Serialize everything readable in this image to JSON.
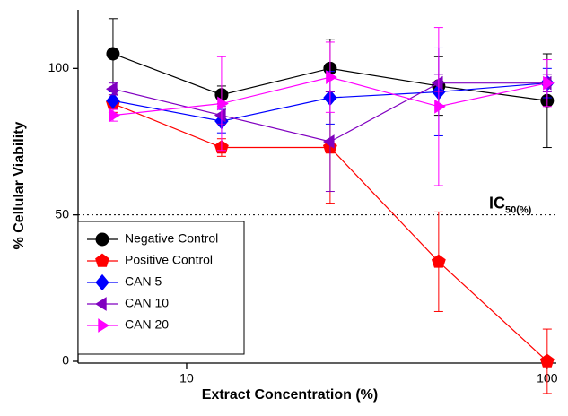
{
  "chart_data": {
    "type": "line",
    "x_label": "Extract Concentration (%)",
    "y_label": "% Cellular Viability",
    "x": [
      6.25,
      12.5,
      25,
      50,
      100
    ],
    "x_log": true,
    "xlim": [
      5,
      106
    ],
    "xticks": [
      10,
      100
    ],
    "ylim": [
      0,
      120
    ],
    "yticks": [
      0,
      50,
      100
    ],
    "reference_line": 50,
    "reference_label": "IC",
    "reference_label_sub": "50(%)",
    "legend": "lower-left",
    "series": [
      {
        "name": "Negative Control",
        "color": "#000000",
        "marker": "circle",
        "values": [
          105,
          91,
          100,
          94,
          89
        ],
        "errors": [
          12,
          3,
          10,
          10,
          16
        ]
      },
      {
        "name": "Positive Control",
        "color": "#ff0000",
        "marker": "pentagon",
        "values": [
          88,
          73,
          73,
          34,
          0
        ],
        "errors": [
          3,
          3,
          19,
          17,
          11
        ]
      },
      {
        "name": "CAN 5",
        "color": "#0000ff",
        "marker": "diamond",
        "values": [
          89,
          82,
          90,
          92,
          95
        ],
        "errors": [
          3,
          4,
          9,
          15,
          5
        ]
      },
      {
        "name": "CAN 10",
        "color": "#8000c0",
        "marker": "triangle-left",
        "values": [
          93,
          84,
          75,
          95,
          95
        ],
        "errors": [
          2,
          3,
          17,
          3,
          3
        ]
      },
      {
        "name": "CAN 20",
        "color": "#ff00ff",
        "marker": "triangle-right",
        "values": [
          84,
          88,
          97,
          87,
          95
        ],
        "errors": [
          2,
          16,
          12,
          27,
          8
        ]
      }
    ]
  }
}
